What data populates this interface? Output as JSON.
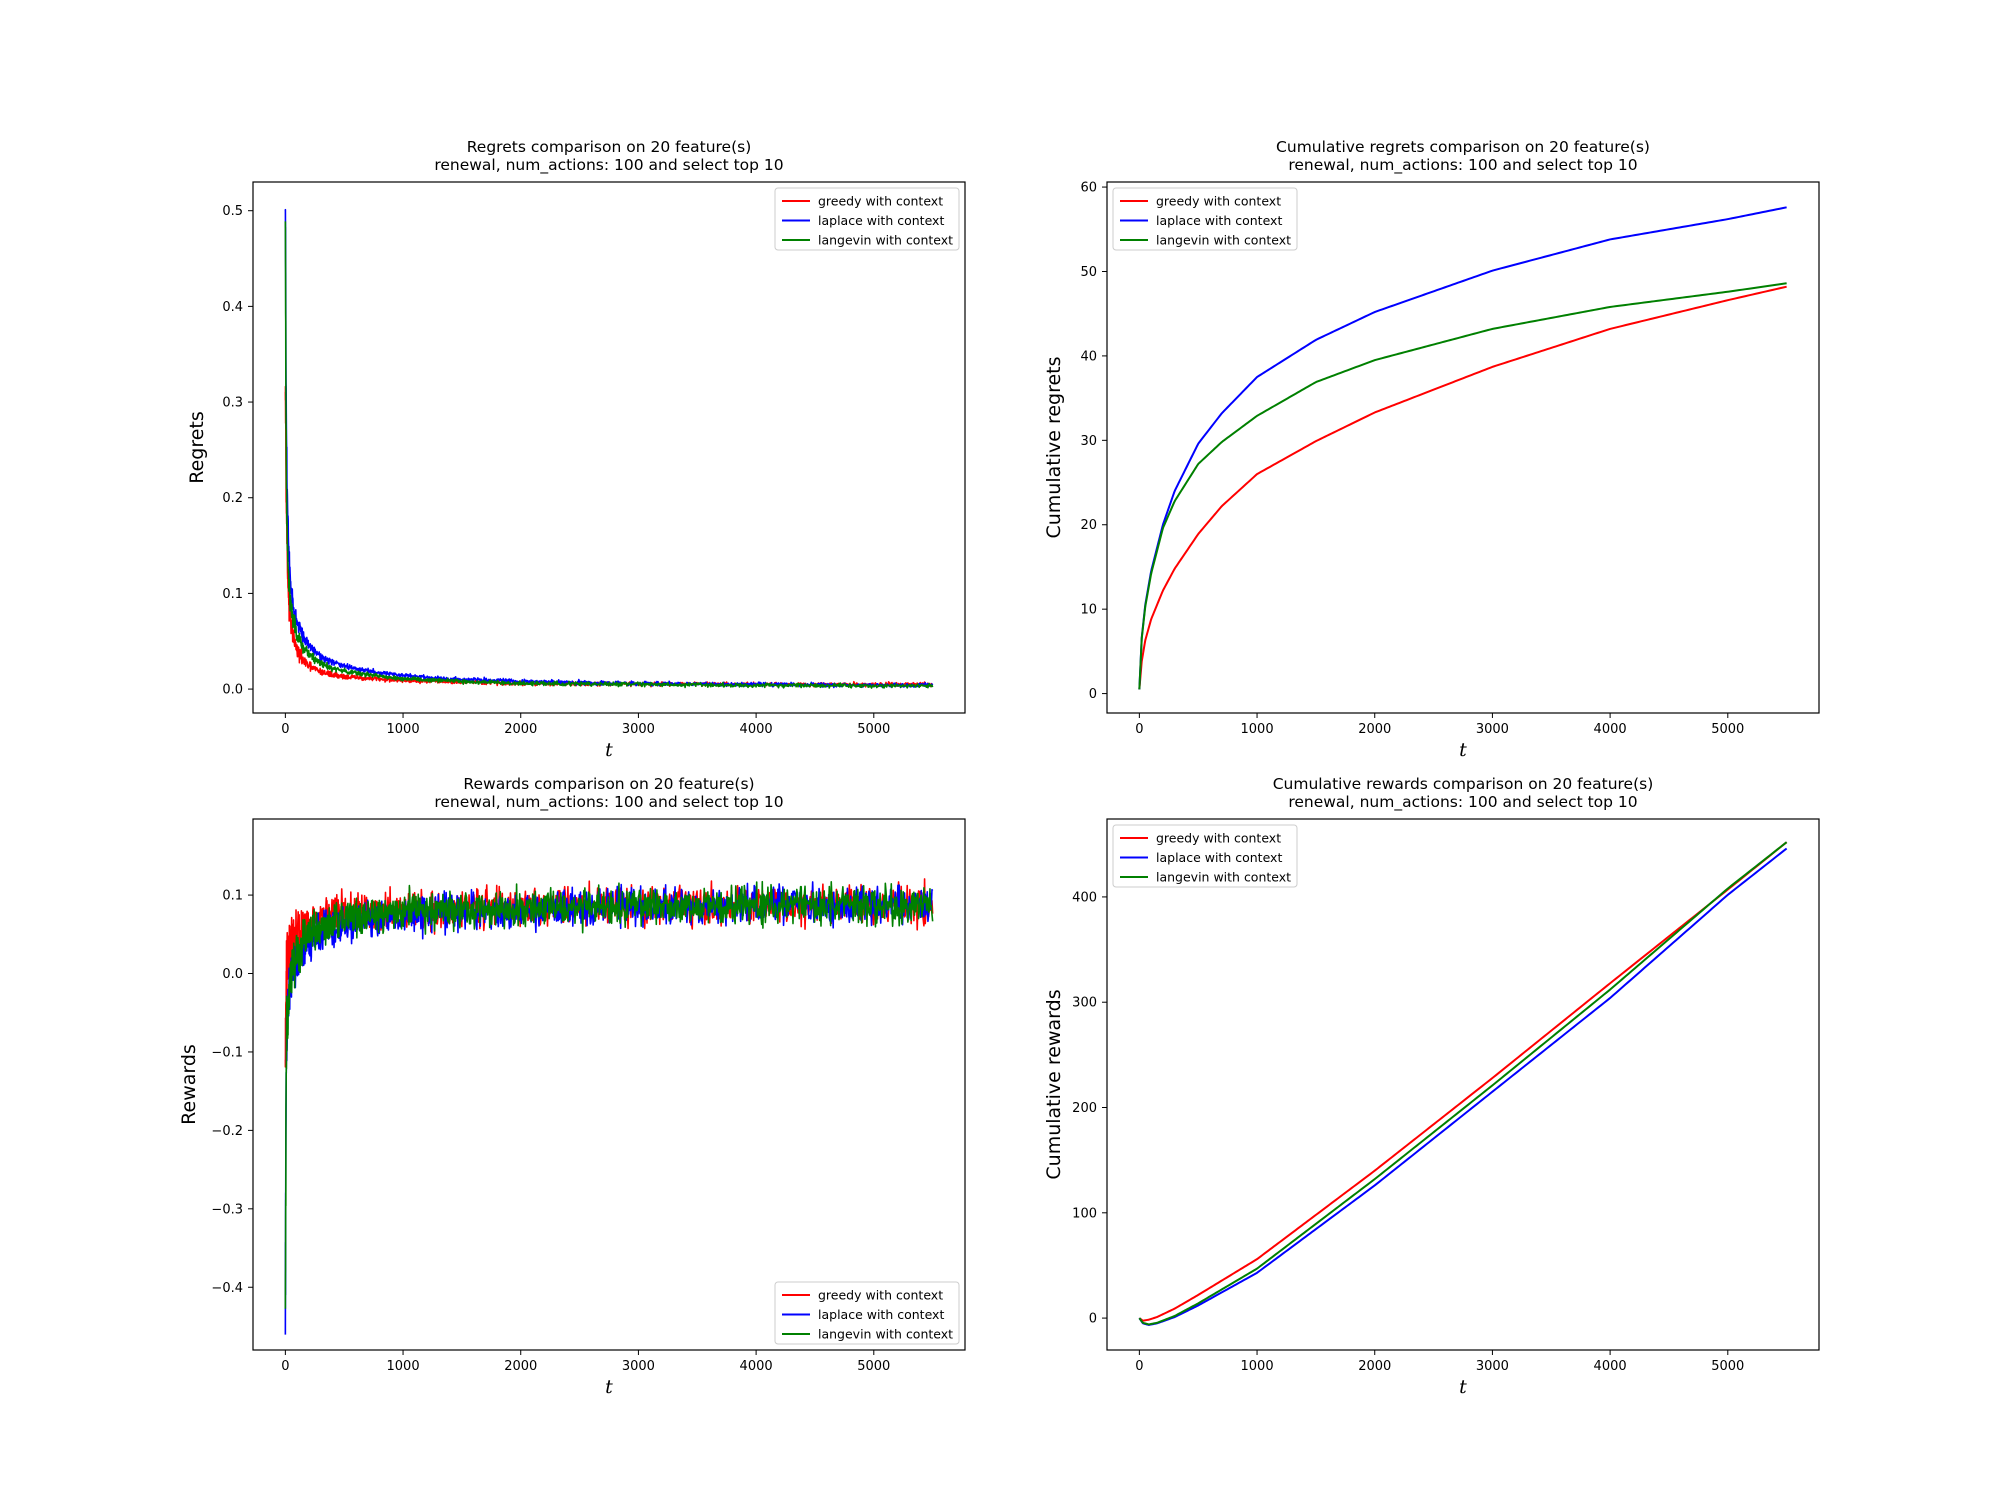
{
  "chart_data": [
    {
      "type": "line",
      "title": [
        "Regrets comparison on 20 feature(s)",
        "renewal, num_actions: 100 and select top 10"
      ],
      "xlabel": "t",
      "ylabel": "Regrets",
      "xlim": [
        -275,
        5775
      ],
      "ylim": [
        -0.025,
        0.53
      ],
      "xticks": [
        0,
        1000,
        2000,
        3000,
        4000,
        5000
      ],
      "xtick_labels": [
        "0",
        "1000",
        "2000",
        "3000",
        "4000",
        "5000"
      ],
      "yticks": [
        0.0,
        0.1,
        0.2,
        0.3,
        0.4,
        0.5
      ],
      "ytick_labels": [
        "0.0",
        "0.1",
        "0.2",
        "0.3",
        "0.4",
        "0.5"
      ],
      "legend_loc": "upper right",
      "noisy": true,
      "series": [
        {
          "name": "greedy with context",
          "color": "#ff0000",
          "x": [
            0,
            5,
            10,
            20,
            30,
            50,
            75,
            100,
            150,
            200,
            300,
            400,
            500,
            700,
            1000,
            1500,
            2000,
            3000,
            4000,
            5000,
            5500
          ],
          "y": [
            0.33,
            0.25,
            0.18,
            0.12,
            0.09,
            0.065,
            0.05,
            0.04,
            0.03,
            0.024,
            0.018,
            0.015,
            0.013,
            0.011,
            0.009,
            0.007,
            0.006,
            0.0055,
            0.005,
            0.005,
            0.005
          ],
          "noise": [
            0.02,
            0.02,
            0.02,
            0.015,
            0.012,
            0.01,
            0.008,
            0.007,
            0.006,
            0.004,
            0.0035,
            0.003,
            0.0025,
            0.0022,
            0.002,
            0.002,
            0.002,
            0.002,
            0.002,
            0.002,
            0.002
          ]
        },
        {
          "name": "laplace with context",
          "color": "#0000ff",
          "x": [
            0,
            5,
            10,
            20,
            30,
            50,
            75,
            100,
            150,
            200,
            300,
            400,
            500,
            700,
            1000,
            1500,
            2000,
            3000,
            4000,
            5000,
            5500
          ],
          "y": [
            0.51,
            0.35,
            0.25,
            0.18,
            0.14,
            0.1,
            0.08,
            0.07,
            0.055,
            0.046,
            0.034,
            0.028,
            0.024,
            0.019,
            0.014,
            0.01,
            0.008,
            0.006,
            0.005,
            0.004,
            0.004
          ],
          "noise": [
            0.02,
            0.02,
            0.02,
            0.015,
            0.012,
            0.01,
            0.008,
            0.007,
            0.006,
            0.004,
            0.0035,
            0.003,
            0.0025,
            0.0022,
            0.002,
            0.002,
            0.002,
            0.002,
            0.002,
            0.002,
            0.002
          ]
        },
        {
          "name": "langevin with context",
          "color": "#008000",
          "x": [
            0,
            5,
            10,
            20,
            30,
            50,
            75,
            100,
            150,
            200,
            300,
            400,
            500,
            700,
            1000,
            1500,
            2000,
            3000,
            4000,
            5000,
            5500
          ],
          "y": [
            0.49,
            0.3,
            0.2,
            0.14,
            0.11,
            0.085,
            0.068,
            0.058,
            0.044,
            0.036,
            0.027,
            0.022,
            0.019,
            0.015,
            0.011,
            0.008,
            0.006,
            0.005,
            0.004,
            0.0035,
            0.0035
          ],
          "noise": [
            0.02,
            0.02,
            0.02,
            0.015,
            0.012,
            0.01,
            0.008,
            0.007,
            0.006,
            0.004,
            0.0035,
            0.003,
            0.0025,
            0.0022,
            0.002,
            0.002,
            0.002,
            0.002,
            0.002,
            0.002,
            0.002
          ]
        }
      ]
    },
    {
      "type": "line",
      "title": [
        "Cumulative regrets comparison on 20 feature(s)",
        "renewal, num_actions: 100 and select top 10"
      ],
      "xlabel": "t",
      "ylabel": "Cumulative regrets",
      "xlim": [
        -275,
        5775
      ],
      "ylim": [
        -2.3,
        60.6
      ],
      "xticks": [
        0,
        1000,
        2000,
        3000,
        4000,
        5000
      ],
      "xtick_labels": [
        "0",
        "1000",
        "2000",
        "3000",
        "4000",
        "5000"
      ],
      "yticks": [
        0,
        10,
        20,
        30,
        40,
        50,
        60
      ],
      "ytick_labels": [
        "0",
        "10",
        "20",
        "30",
        "40",
        "50",
        "60"
      ],
      "legend_loc": "upper left",
      "noisy": false,
      "series": [
        {
          "name": "greedy with context",
          "color": "#ff0000",
          "x": [
            0,
            20,
            50,
            100,
            200,
            300,
            500,
            700,
            1000,
            1500,
            2000,
            3000,
            4000,
            5000,
            5500
          ],
          "y": [
            0.5,
            3.8,
            6.3,
            8.8,
            12.2,
            14.8,
            18.9,
            22.2,
            26.0,
            29.9,
            33.3,
            38.7,
            43.2,
            46.6,
            48.2
          ]
        },
        {
          "name": "laplace with context",
          "color": "#0000ff",
          "x": [
            0,
            20,
            50,
            100,
            200,
            300,
            500,
            700,
            1000,
            1500,
            2000,
            3000,
            4000,
            5000,
            5500
          ],
          "y": [
            0.5,
            6.6,
            10.5,
            14.5,
            20.0,
            24.0,
            29.6,
            33.2,
            37.5,
            41.9,
            45.2,
            50.1,
            53.8,
            56.2,
            57.6
          ]
        },
        {
          "name": "langevin with context",
          "color": "#008000",
          "x": [
            0,
            20,
            50,
            100,
            200,
            300,
            500,
            700,
            1000,
            1500,
            2000,
            3000,
            4000,
            5000,
            5500
          ],
          "y": [
            0.5,
            6.5,
            10.3,
            14.2,
            19.6,
            22.8,
            27.2,
            29.8,
            32.9,
            36.9,
            39.5,
            43.2,
            45.8,
            47.6,
            48.6
          ]
        }
      ]
    },
    {
      "type": "line",
      "title": [
        "Rewards comparison on 20 feature(s)",
        "renewal, num_actions: 100 and select top 10"
      ],
      "xlabel": "t",
      "ylabel": "Rewards",
      "xlim": [
        -275,
        5775
      ],
      "ylim": [
        -0.48,
        0.197
      ],
      "xticks": [
        0,
        1000,
        2000,
        3000,
        4000,
        5000
      ],
      "xtick_labels": [
        "0",
        "1000",
        "2000",
        "3000",
        "4000",
        "5000"
      ],
      "yticks": [
        -0.4,
        -0.3,
        -0.2,
        -0.1,
        0.0,
        0.1
      ],
      "ytick_labels": [
        "−0.4",
        "−0.3",
        "−0.2",
        "−0.1",
        "0.0",
        "0.1"
      ],
      "legend_loc": "lower right",
      "noisy": true,
      "series": [
        {
          "name": "greedy with context",
          "color": "#ff0000",
          "x": [
            0,
            5,
            10,
            20,
            30,
            50,
            75,
            100,
            150,
            200,
            300,
            400,
            500,
            700,
            1000,
            2000,
            3000,
            4000,
            5000,
            5500
          ],
          "y": [
            -0.12,
            -0.04,
            0.0,
            0.02,
            0.03,
            0.04,
            0.05,
            0.055,
            0.062,
            0.067,
            0.072,
            0.075,
            0.078,
            0.08,
            0.082,
            0.085,
            0.087,
            0.088,
            0.088,
            0.088
          ],
          "noise": [
            0.05,
            0.04,
            0.04,
            0.035,
            0.03,
            0.03,
            0.03,
            0.028,
            0.025,
            0.022,
            0.022,
            0.022,
            0.022,
            0.022,
            0.022,
            0.022,
            0.022,
            0.022,
            0.022,
            0.022
          ]
        },
        {
          "name": "laplace with context",
          "color": "#0000ff",
          "x": [
            0,
            5,
            10,
            20,
            30,
            50,
            75,
            100,
            150,
            200,
            300,
            400,
            500,
            700,
            1000,
            2000,
            3000,
            4000,
            5000,
            5500
          ],
          "y": [
            -0.44,
            -0.2,
            -0.1,
            -0.06,
            -0.03,
            -0.01,
            0.005,
            0.015,
            0.03,
            0.04,
            0.05,
            0.058,
            0.064,
            0.07,
            0.075,
            0.082,
            0.085,
            0.086,
            0.087,
            0.087
          ],
          "noise": [
            0.05,
            0.04,
            0.04,
            0.035,
            0.03,
            0.03,
            0.03,
            0.028,
            0.025,
            0.022,
            0.022,
            0.022,
            0.022,
            0.022,
            0.022,
            0.022,
            0.022,
            0.022,
            0.022,
            0.022
          ]
        },
        {
          "name": "langevin with context",
          "color": "#008000",
          "x": [
            0,
            5,
            10,
            20,
            30,
            50,
            75,
            100,
            150,
            200,
            300,
            400,
            500,
            700,
            1000,
            2000,
            3000,
            4000,
            5000,
            5500
          ],
          "y": [
            -0.43,
            -0.18,
            -0.09,
            -0.05,
            -0.02,
            0.0,
            0.015,
            0.025,
            0.04,
            0.05,
            0.06,
            0.065,
            0.07,
            0.075,
            0.078,
            0.084,
            0.086,
            0.087,
            0.088,
            0.088
          ],
          "noise": [
            0.05,
            0.04,
            0.04,
            0.035,
            0.03,
            0.03,
            0.03,
            0.028,
            0.025,
            0.022,
            0.022,
            0.022,
            0.022,
            0.022,
            0.022,
            0.022,
            0.022,
            0.022,
            0.022,
            0.022
          ]
        }
      ]
    },
    {
      "type": "line",
      "title": [
        "Cumulative rewards comparison on 20 feature(s)",
        "renewal, num_actions: 100 and select top 10"
      ],
      "xlabel": "t",
      "ylabel": "Cumulative rewards",
      "xlim": [
        -275,
        5775
      ],
      "ylim": [
        -30.3,
        474
      ],
      "xticks": [
        0,
        1000,
        2000,
        3000,
        4000,
        5000
      ],
      "xtick_labels": [
        "0",
        "1000",
        "2000",
        "3000",
        "4000",
        "5000"
      ],
      "yticks": [
        0,
        100,
        200,
        300,
        400
      ],
      "ytick_labels": [
        "0",
        "100",
        "200",
        "300",
        "400"
      ],
      "legend_loc": "upper left",
      "noisy": false,
      "series": [
        {
          "name": "greedy with context",
          "color": "#ff0000",
          "x": [
            0,
            30,
            80,
            150,
            300,
            500,
            1000,
            2000,
            3000,
            4000,
            5000,
            5500
          ],
          "y": [
            0,
            -2.5,
            -1.5,
            1,
            9,
            22,
            56,
            140,
            228,
            318,
            407,
            452
          ]
        },
        {
          "name": "laplace with context",
          "color": "#0000ff",
          "x": [
            0,
            30,
            80,
            150,
            300,
            500,
            1000,
            2000,
            3000,
            4000,
            5000,
            5500
          ],
          "y": [
            0,
            -5,
            -6.5,
            -5,
            1,
            12,
            43,
            126,
            215,
            304,
            402,
            446
          ]
        },
        {
          "name": "langevin with context",
          "color": "#008000",
          "x": [
            0,
            30,
            80,
            150,
            300,
            500,
            1000,
            2000,
            3000,
            4000,
            5000,
            5500
          ],
          "y": [
            0,
            -4.5,
            -6,
            -4.5,
            2,
            14,
            47,
            132,
            221,
            312,
            408,
            452
          ]
        }
      ]
    }
  ]
}
